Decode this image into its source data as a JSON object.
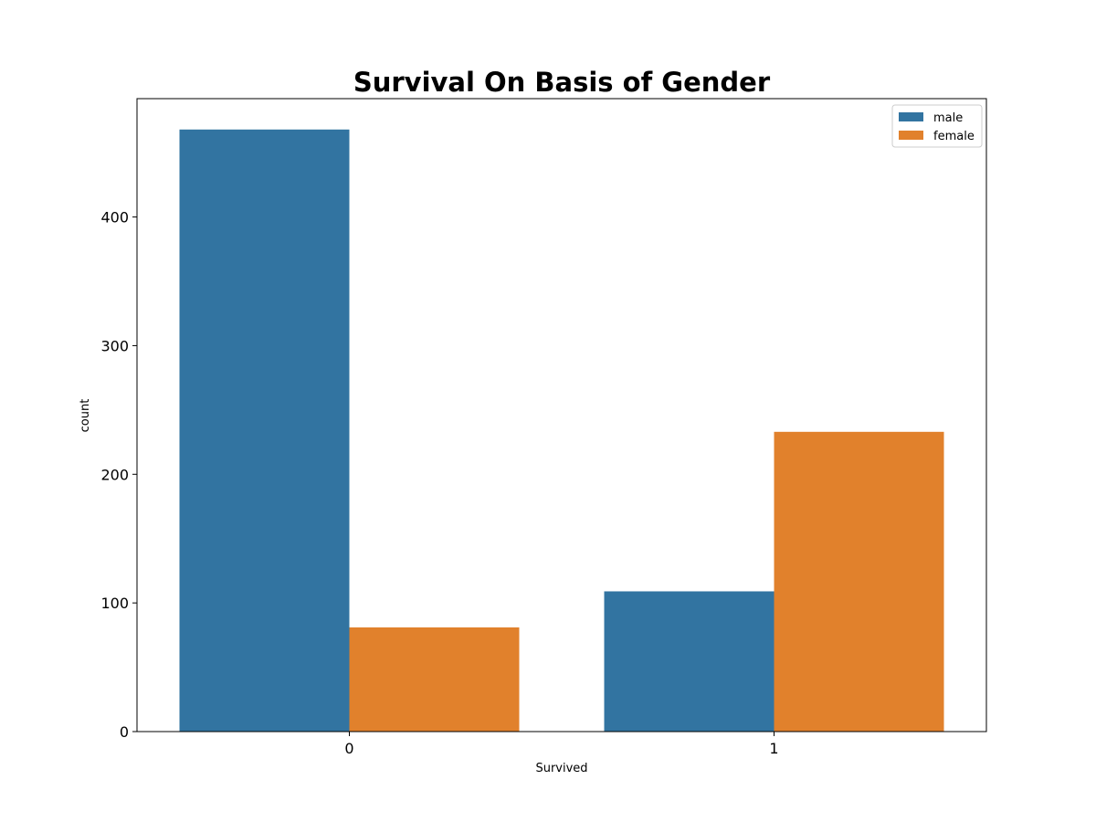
{
  "chart_data": {
    "type": "bar",
    "title": "Survival On Basis of Gender",
    "xlabel": "Survived",
    "ylabel": "count",
    "categories": [
      "0",
      "1"
    ],
    "series": [
      {
        "name": "male",
        "values": [
          468,
          109
        ],
        "color": "#3274a1"
      },
      {
        "name": "female",
        "values": [
          81,
          233
        ],
        "color": "#e1812c"
      }
    ],
    "ylim": [
      0,
      492
    ],
    "yticks": [
      0,
      100,
      200,
      300,
      400
    ],
    "grid": false,
    "legend_position": "top-right"
  }
}
